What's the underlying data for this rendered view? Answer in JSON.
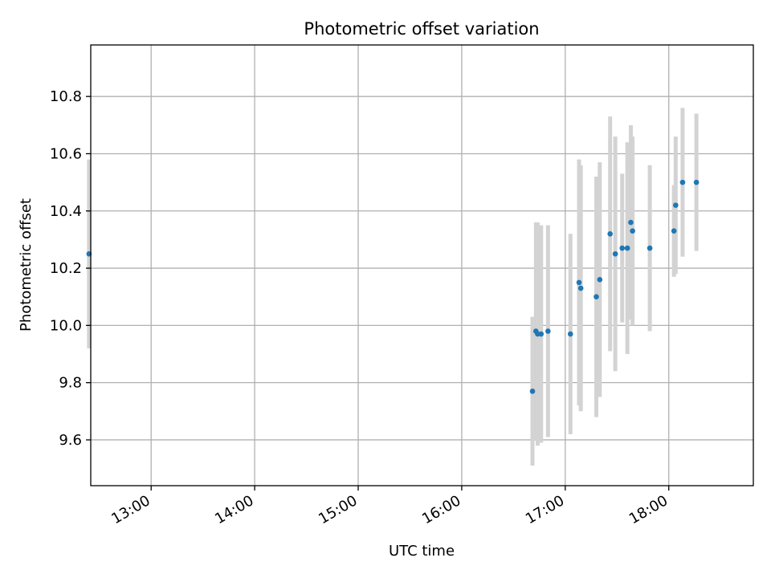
{
  "chart_data": {
    "type": "scatter",
    "title": "Photometric offset variation",
    "xlabel": "UTC time",
    "ylabel": "Photometric offset",
    "x_ticks": [
      "13:00",
      "14:00",
      "15:00",
      "16:00",
      "17:00",
      "18:00"
    ],
    "y_ticks": [
      "9.6",
      "9.8",
      "10.0",
      "10.2",
      "10.4",
      "10.6",
      "10.8"
    ],
    "xlim": [
      "12:25",
      "18:49"
    ],
    "ylim": [
      9.44,
      10.98
    ],
    "grid": true,
    "colors": {
      "point": "#1f77b4",
      "errorbar": "#d3d3d3",
      "grid": "#b0b0b0"
    },
    "points": [
      {
        "x": "12:24",
        "y": 10.25,
        "err": 0.33
      },
      {
        "x": "16:41",
        "y": 9.77,
        "err": 0.26
      },
      {
        "x": "16:43",
        "y": 9.98,
        "err": 0.38
      },
      {
        "x": "16:44",
        "y": 9.97,
        "err": 0.39
      },
      {
        "x": "16:46",
        "y": 9.97,
        "err": 0.38
      },
      {
        "x": "16:50",
        "y": 9.98,
        "err": 0.37
      },
      {
        "x": "17:03",
        "y": 9.97,
        "err": 0.35
      },
      {
        "x": "17:08",
        "y": 10.15,
        "err": 0.43
      },
      {
        "x": "17:09",
        "y": 10.13,
        "err": 0.43
      },
      {
        "x": "17:18",
        "y": 10.1,
        "err": 0.42
      },
      {
        "x": "17:20",
        "y": 10.16,
        "err": 0.41
      },
      {
        "x": "17:26",
        "y": 10.32,
        "err": 0.41
      },
      {
        "x": "17:29",
        "y": 10.25,
        "err": 0.41
      },
      {
        "x": "17:33",
        "y": 10.27,
        "err": 0.26
      },
      {
        "x": "17:36",
        "y": 10.27,
        "err": 0.37
      },
      {
        "x": "17:38",
        "y": 10.36,
        "err": 0.34
      },
      {
        "x": "17:39",
        "y": 10.33,
        "err": 0.33
      },
      {
        "x": "17:49",
        "y": 10.27,
        "err": 0.29
      },
      {
        "x": "18:03",
        "y": 10.33,
        "err": 0.16
      },
      {
        "x": "18:04",
        "y": 10.42,
        "err": 0.24
      },
      {
        "x": "18:08",
        "y": 10.5,
        "err": 0.26
      },
      {
        "x": "18:16",
        "y": 10.5,
        "err": 0.24
      }
    ]
  }
}
